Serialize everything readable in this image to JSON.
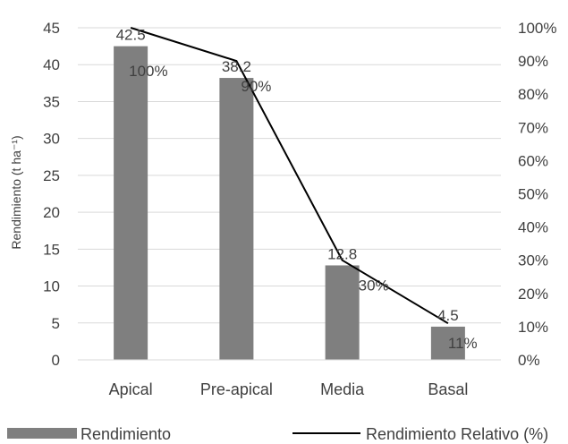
{
  "chart_data": {
    "type": "bar+line",
    "categories": [
      "Apical",
      "Pre-apical",
      "Media",
      "Basal"
    ],
    "series": [
      {
        "name": "Rendimiento",
        "type": "bar",
        "axis": "left",
        "values": [
          42.5,
          38.2,
          12.8,
          4.5
        ],
        "labels": [
          "42.5",
          "38.2",
          "12.8",
          "4.5"
        ],
        "color": "#7f7f7f"
      },
      {
        "name": "Rendimiento Relativo (%)",
        "type": "line",
        "axis": "right",
        "values": [
          100,
          90,
          30,
          11
        ],
        "labels": [
          "100%",
          "90%",
          "30%",
          "11%"
        ],
        "color": "#000000"
      }
    ],
    "ylabel": "Rendimiento (t ha⁻¹)",
    "ylim": [
      0,
      45
    ],
    "yticks": [
      "0",
      "5",
      "10",
      "15",
      "20",
      "25",
      "30",
      "35",
      "40",
      "45"
    ],
    "y2lim": [
      0,
      100
    ],
    "y2ticks": [
      "0%",
      "10%",
      "20%",
      "30%",
      "40%",
      "50%",
      "60%",
      "70%",
      "80%",
      "90%",
      "100%"
    ],
    "grid": true,
    "legend": "bottom"
  }
}
